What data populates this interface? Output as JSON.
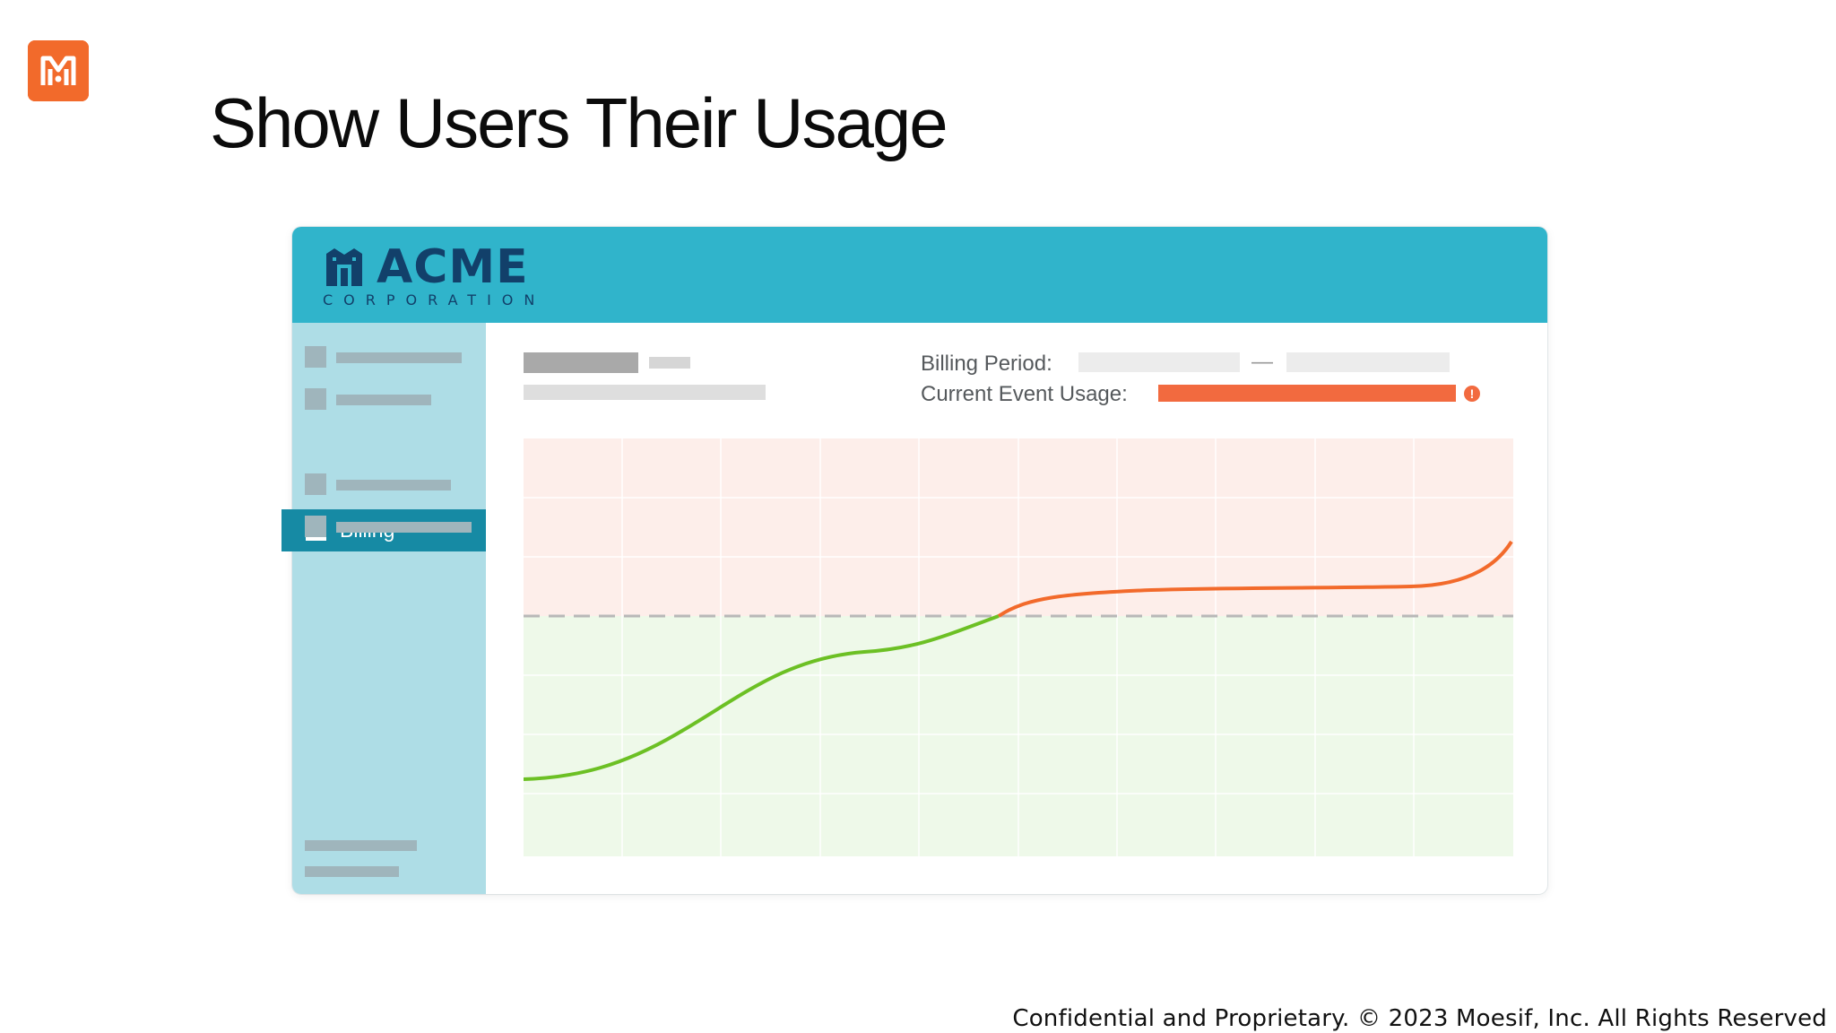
{
  "slide": {
    "title": "Show Users Their Usage",
    "footer": "Confidential and Proprietary. © 2023 Moesif, Inc. All Rights Reserved",
    "brand_color": "#f26a2b",
    "brand_icon": "moesif-logo-icon"
  },
  "app": {
    "logo_name": "ACME",
    "logo_sub": "CORPORATION",
    "logo_icon": "acme-building-icon",
    "header_color": "#30b4cb",
    "sidebar": {
      "active_item": "Billing"
    },
    "billing": {
      "period_label": "Billing Period:",
      "period_separator": "—",
      "usage_label": "Current Event Usage:",
      "usage_color": "#f26a3f",
      "warning_icon": "alert-circle-icon"
    },
    "chart": {
      "over_limit_color": "#fdeeea",
      "under_limit_color": "#eef9e9",
      "line_under_color": "#6cc024",
      "line_over_color": "#f26a2b",
      "limit_line_color": "#b8b8b8"
    }
  }
}
